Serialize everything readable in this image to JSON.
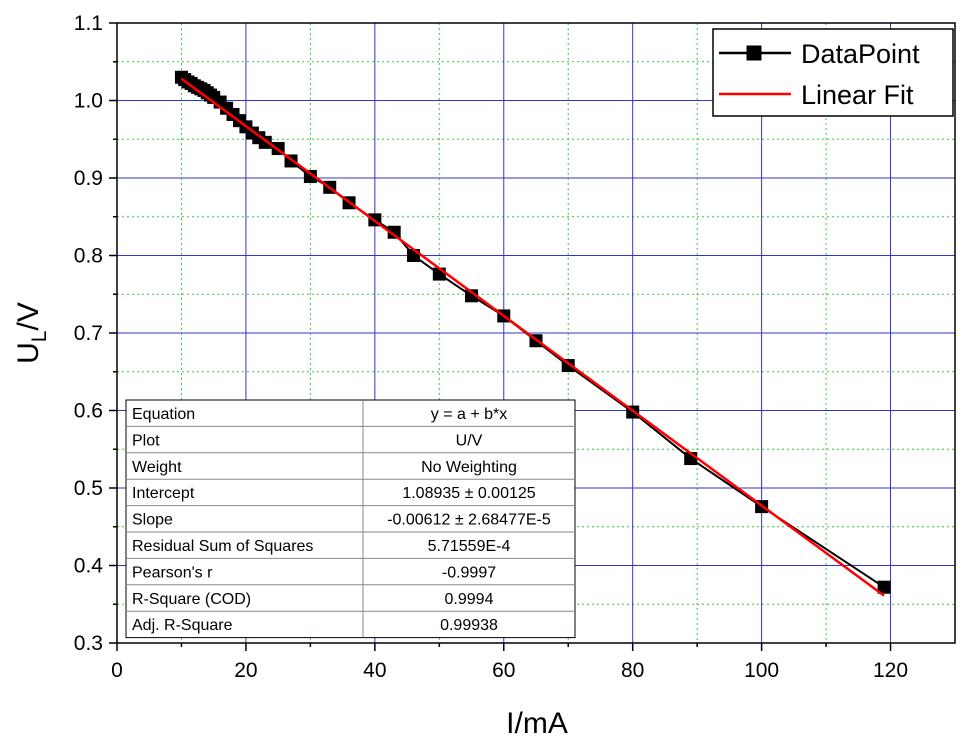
{
  "chart_data": {
    "type": "scatter",
    "xlabel": "I/mA",
    "ylabel_main": "U",
    "ylabel_sub": "L",
    "ylabel_unit": "/V",
    "xlim": [
      0,
      130
    ],
    "ylim": [
      0.3,
      1.1
    ],
    "x_ticks": [
      0,
      20,
      40,
      60,
      80,
      100,
      120
    ],
    "y_ticks": [
      0.3,
      0.4,
      0.5,
      0.6,
      0.7,
      0.8,
      0.9,
      1.0,
      1.1
    ],
    "x_tick_labels": [
      "0",
      "20",
      "40",
      "60",
      "80",
      "100",
      "120"
    ],
    "y_tick_labels": [
      "0.3",
      "0.4",
      "0.5",
      "0.6",
      "0.7",
      "0.8",
      "0.9",
      "1.0",
      "1.1"
    ],
    "grid": "major solid blue, minor dotted green",
    "legend_position": "top-right",
    "series": [
      {
        "name": "DataPoint",
        "style": "line with square markers",
        "color": "#000000",
        "x": [
          10,
          10.5,
          11,
          11.5,
          12,
          12.5,
          13,
          13.5,
          14,
          14.5,
          15,
          16,
          17,
          18,
          19,
          20,
          21,
          22,
          23,
          25,
          27,
          30,
          33,
          36,
          40,
          43,
          46,
          50,
          55,
          60,
          65,
          70,
          80,
          89,
          100,
          119
        ],
        "y": [
          1.03,
          1.027,
          1.024,
          1.022,
          1.019,
          1.017,
          1.015,
          1.013,
          1.01,
          1.007,
          1.004,
          0.998,
          0.99,
          0.982,
          0.974,
          0.966,
          0.958,
          0.952,
          0.946,
          0.938,
          0.922,
          0.902,
          0.888,
          0.868,
          0.846,
          0.83,
          0.8,
          0.776,
          0.748,
          0.722,
          0.69,
          0.658,
          0.598,
          0.538,
          0.476,
          0.372
        ]
      },
      {
        "name": "Linear Fit",
        "style": "line",
        "color": "#ff0000",
        "x": [
          10,
          119
        ],
        "y": [
          1.02815,
          0.36107
        ]
      }
    ],
    "fit_table": [
      {
        "label": "Equation",
        "value": "y = a + b*x"
      },
      {
        "label": "Plot",
        "value": "U/V"
      },
      {
        "label": "Weight",
        "value": "No Weighting"
      },
      {
        "label": "Intercept",
        "value": "1.08935 ± 0.00125"
      },
      {
        "label": "Slope",
        "value": "-0.00612 ± 2.68477E-5"
      },
      {
        "label": "Residual Sum of Squares",
        "value": "5.71559E-4"
      },
      {
        "label": "Pearson's r",
        "value": "-0.9997"
      },
      {
        "label": "R-Square (COD)",
        "value": "0.9994"
      },
      {
        "label": "Adj. R-Square",
        "value": "0.99938"
      }
    ]
  }
}
